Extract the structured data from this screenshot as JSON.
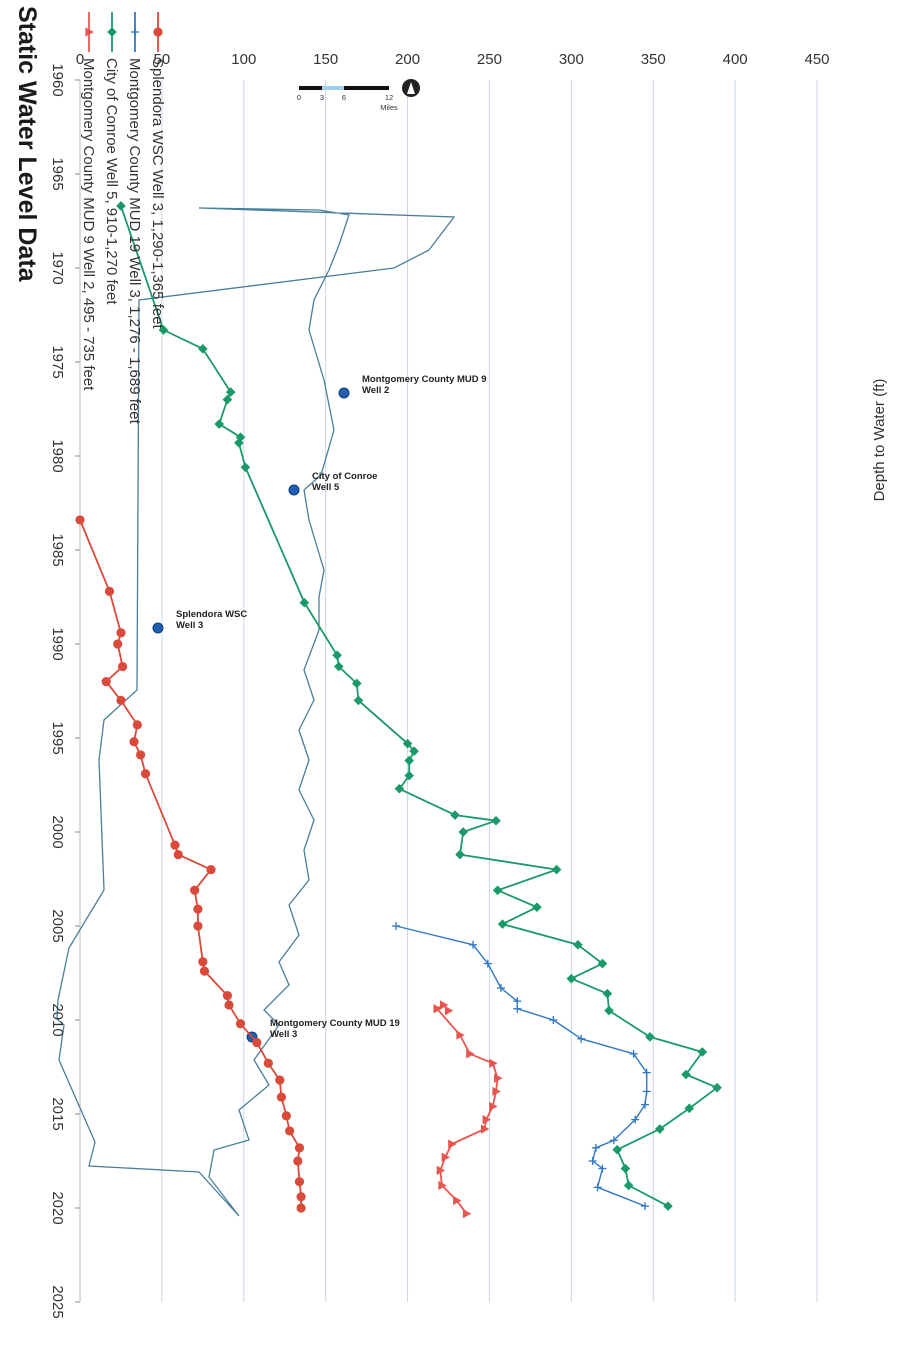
{
  "colors": {
    "mud9": "#e8554f",
    "conroe": "#1a9a68",
    "mud19": "#2f78c4",
    "splendora": "#d94a3a",
    "grid": "#c9d6e6",
    "boundary": "#4a7f9a",
    "well": "#1f5fae"
  },
  "chart_data": {
    "type": "line",
    "title": "Static Water Level Data",
    "ylabel": "Depth to Water (ft)",
    "xlabel": "",
    "xlim": [
      1960,
      2025
    ],
    "ylim": [
      0,
      450
    ],
    "y_inverted": true,
    "x_ticks": [
      "1960",
      "1965",
      "1970",
      "1975",
      "1980",
      "1985",
      "1990",
      "1995",
      "2000",
      "2005",
      "2010",
      "2015",
      "2020",
      "2025"
    ],
    "y_ticks": [
      "0",
      "50",
      "100",
      "150",
      "200",
      "250",
      "300",
      "350",
      "400",
      "450"
    ],
    "orientation": "rotated 90 degrees clockwise",
    "series": [
      {
        "name": "Montgomery County MUD 9 Well 2,  495 - 735 feet",
        "color_key": "mud9",
        "marker": "triangle",
        "points": [
          [
            2009.5,
            225
          ],
          [
            2009.2,
            222
          ],
          [
            2009.4,
            218
          ],
          [
            2010.8,
            232
          ],
          [
            2011.8,
            238
          ],
          [
            2012.3,
            252
          ],
          [
            2013.1,
            255
          ],
          [
            2013.8,
            254
          ],
          [
            2014.6,
            252
          ],
          [
            2015.3,
            248
          ],
          [
            2015.8,
            247
          ],
          [
            2016.6,
            227
          ],
          [
            2017.3,
            223
          ],
          [
            2018.0,
            220
          ],
          [
            2018.8,
            221
          ],
          [
            2019.6,
            230
          ],
          [
            2020.3,
            236
          ]
        ]
      },
      {
        "name": "City of Conroe Well 5,  910-1,270 feet",
        "color_key": "conroe",
        "marker": "diamond",
        "points": [
          [
            1966.7,
            25
          ],
          [
            1973.3,
            51
          ],
          [
            1974.3,
            75
          ],
          [
            1976.6,
            92
          ],
          [
            1977.0,
            90
          ],
          [
            1978.3,
            85
          ],
          [
            1979.0,
            98
          ],
          [
            1979.3,
            97
          ],
          [
            1980.6,
            101
          ],
          [
            1987.8,
            137
          ],
          [
            1990.6,
            157
          ],
          [
            1991.2,
            158
          ],
          [
            1992.1,
            169
          ],
          [
            1993.0,
            170
          ],
          [
            1995.3,
            200
          ],
          [
            1995.7,
            204
          ],
          [
            1996.2,
            201
          ],
          [
            1997.0,
            201
          ],
          [
            1997.7,
            195
          ],
          [
            1999.1,
            229
          ],
          [
            1999.4,
            254
          ],
          [
            2000.0,
            234
          ],
          [
            2001.2,
            232
          ],
          [
            2002.0,
            291
          ],
          [
            2003.1,
            255
          ],
          [
            2004.0,
            279
          ],
          [
            2004.9,
            258
          ],
          [
            2006.0,
            304
          ],
          [
            2007.0,
            319
          ],
          [
            2007.8,
            300
          ],
          [
            2008.6,
            322
          ],
          [
            2009.5,
            323
          ],
          [
            2010.9,
            348
          ],
          [
            2011.7,
            380
          ],
          [
            2012.9,
            370
          ],
          [
            2013.6,
            389
          ],
          [
            2014.7,
            372
          ],
          [
            2015.8,
            354
          ],
          [
            2016.9,
            328
          ],
          [
            2017.9,
            333
          ],
          [
            2018.8,
            335
          ],
          [
            2019.9,
            359
          ]
        ]
      },
      {
        "name": "Montgomery County MUD 19 Well 3,  1,276 - 1,689 feet",
        "color_key": "mud19",
        "marker": "plus",
        "points": [
          [
            2005.0,
            193
          ],
          [
            2006.0,
            240
          ],
          [
            2007.0,
            249
          ],
          [
            2008.3,
            257
          ],
          [
            2009.0,
            267
          ],
          [
            2009.4,
            267
          ],
          [
            2010.0,
            289
          ],
          [
            2011.0,
            306
          ],
          [
            2011.8,
            338
          ],
          [
            2012.8,
            346
          ],
          [
            2013.8,
            346
          ],
          [
            2014.5,
            345
          ],
          [
            2015.3,
            339
          ],
          [
            2016.4,
            326
          ],
          [
            2016.8,
            315
          ],
          [
            2017.5,
            313
          ],
          [
            2017.9,
            319
          ],
          [
            2018.9,
            316
          ],
          [
            2019.9,
            345
          ]
        ]
      },
      {
        "name": "Splendora WSC Well 3, 1,290-1,365 feet",
        "color_key": "splendora",
        "marker": "circle",
        "points": [
          [
            1983.4,
            0
          ],
          [
            1987.2,
            18
          ],
          [
            1989.4,
            25
          ],
          [
            1990.0,
            23
          ],
          [
            1991.2,
            26
          ],
          [
            1992.0,
            16
          ],
          [
            1993.0,
            25
          ],
          [
            1994.3,
            35
          ],
          [
            1995.2,
            33
          ],
          [
            1995.9,
            37
          ],
          [
            1996.9,
            40
          ],
          [
            2000.7,
            58
          ],
          [
            2001.2,
            60
          ],
          [
            2002.0,
            80
          ],
          [
            2003.1,
            70
          ],
          [
            2004.1,
            72
          ],
          [
            2005.0,
            72
          ],
          [
            2006.9,
            75
          ],
          [
            2007.4,
            76
          ],
          [
            2008.7,
            90
          ],
          [
            2009.2,
            91
          ],
          [
            2010.2,
            98
          ],
          [
            2011.2,
            108
          ],
          [
            2012.3,
            115
          ],
          [
            2013.2,
            122
          ],
          [
            2014.1,
            123
          ],
          [
            2015.1,
            126
          ],
          [
            2015.9,
            128
          ],
          [
            2016.8,
            134
          ],
          [
            2017.5,
            133
          ],
          [
            2018.6,
            134
          ],
          [
            2019.4,
            135
          ],
          [
            2020.0,
            135
          ]
        ]
      }
    ]
  },
  "inset_map": {
    "wells": [
      {
        "label1": "Montgomery County MUD 9",
        "label2": "Well 2"
      },
      {
        "label1": "City of Conroe",
        "label2": "Well 5"
      },
      {
        "label1": "Montgomery County MUD 19",
        "label2": "Well 3"
      },
      {
        "label1": "Splendora WSC",
        "label2": "Well 3"
      }
    ],
    "scale_labels": [
      "0",
      "3",
      "6",
      "12"
    ],
    "scale_unit": "Miles"
  }
}
